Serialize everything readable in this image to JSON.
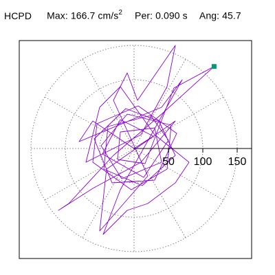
{
  "header": {
    "station": "HCPD",
    "max_label": "Max:",
    "max_value": "166.7",
    "max_unit": "cm/s",
    "max_unit_exp": "2",
    "per_label": "Per:",
    "per_value": "0.090 s",
    "ang_label": "Ang:",
    "ang_value": "45.7"
  },
  "colors": {
    "trace": "#8B00D0",
    "marker": "#009A73",
    "grid": "#808080",
    "axis": "#000000"
  },
  "chart_data": {
    "type": "scatter",
    "subtype": "polar particle motion hodogram",
    "title": "HCPD  Max: 166.7 cm/s2  Per: 0.090 s  Ang: 45.7",
    "radial_ticks": [
      50,
      100,
      150
    ],
    "radial_tick_labels": [
      "50",
      "100",
      "150"
    ],
    "grid_rings": [
      50,
      100,
      150
    ],
    "spoke_angles_deg": [
      0,
      30,
      60,
      90,
      120,
      150,
      180,
      210,
      240,
      270,
      300,
      330
    ],
    "max_amplitude": 166.7,
    "max_angle_deg": 45.7,
    "marker_point": [
      116.4,
      119.3
    ],
    "xlim": [
      -170,
      180
    ],
    "ylim": [
      -155,
      170
    ],
    "series": [
      {
        "values": [
          [
            0,
            0
          ],
          [
            28,
            18
          ],
          [
            -20,
            42
          ],
          [
            -46,
            -8
          ],
          [
            14,
            -42
          ],
          [
            50,
            12
          ],
          [
            24,
            48
          ],
          [
            -38,
            32
          ],
          [
            -44,
            -30
          ],
          [
            12,
            -54
          ],
          [
            60,
            -10
          ],
          [
            36,
            40
          ],
          [
            -12,
            58
          ],
          [
            -58,
            14
          ],
          [
            -32,
            -50
          ],
          [
            30,
            -46
          ],
          [
            62,
            22
          ],
          [
            6,
            62
          ],
          [
            -54,
            36
          ],
          [
            -60,
            -20
          ],
          [
            -4,
            -60
          ],
          [
            48,
            -30
          ],
          [
            54,
            34
          ],
          [
            -10,
            50
          ],
          [
            -48,
            4
          ],
          [
            -18,
            -44
          ],
          [
            40,
            -20
          ],
          [
            30,
            30
          ],
          [
            -20,
            24
          ],
          [
            -24,
            -16
          ],
          [
            16,
            -22
          ],
          [
            58,
            88
          ],
          [
            116.4,
            119.3
          ],
          [
            40,
            50
          ],
          [
            -30,
            -10
          ],
          [
            -95,
            -80
          ],
          [
            -110,
            -90
          ],
          [
            -60,
            -58
          ],
          [
            10,
            -20
          ],
          [
            60,
            40
          ],
          [
            -40,
            -30
          ],
          [
            -50,
            -120
          ],
          [
            -15,
            -80
          ],
          [
            20,
            -40
          ],
          [
            -30,
            70
          ],
          [
            -10,
            110
          ],
          [
            5,
            70
          ],
          [
            60,
            150
          ],
          [
            48,
            90
          ],
          [
            10,
            20
          ],
          [
            -70,
            -20
          ],
          [
            -50,
            60
          ],
          [
            -20,
            90
          ],
          [
            30,
            20
          ],
          [
            80,
            -20
          ],
          [
            60,
            -50
          ],
          [
            20,
            -80
          ],
          [
            -10,
            -90
          ],
          [
            -45,
            -125
          ],
          [
            -20,
            -60
          ],
          [
            70,
            100
          ],
          [
            40,
            60
          ],
          [
            -80,
            10
          ],
          [
            -60,
            40
          ],
          [
            0,
            0
          ]
        ]
      }
    ]
  }
}
